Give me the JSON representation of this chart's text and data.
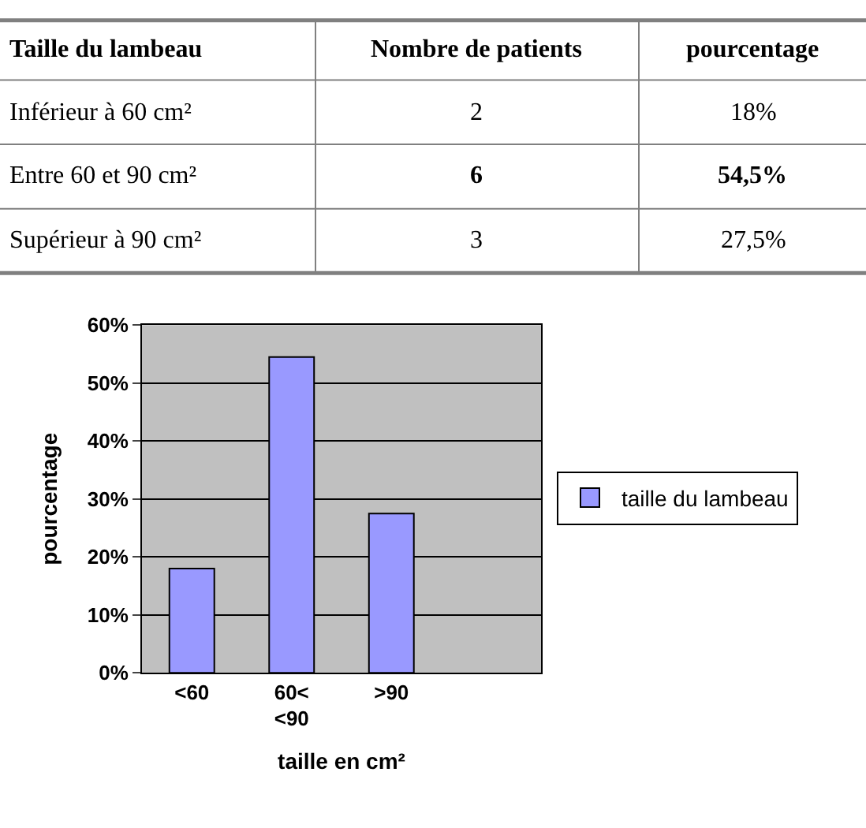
{
  "chart_data": [
    {
      "type": "other",
      "annotations": [
        "Taille du lambeau",
        "Nombre de patients",
        "pourcentage",
        "Inférieur à 60 cm²",
        "2",
        "18%",
        "Entre 60 et 90 cm²",
        "6",
        "54,5%",
        "Supérieur à 90 cm²",
        "3",
        "27,5%"
      ]
    },
    {
      "type": "bar",
      "categories": [
        "<60",
        "60< <90",
        ">90",
        null
      ],
      "series": [
        {
          "name": "taille du lambeau",
          "color": "#9999ff",
          "values": [
            18,
            54.5,
            27.5,
            null
          ]
        }
      ],
      "xlabel": "taille en cm²",
      "ylabel": "pourcentage",
      "ylim": [
        0,
        60
      ],
      "yticks": [
        {
          "value": 0,
          "label": "0%"
        },
        {
          "value": 10,
          "label": "10%"
        },
        {
          "value": 20,
          "label": "20%"
        },
        {
          "value": 30,
          "label": "30%"
        },
        {
          "value": 40,
          "label": "40%"
        },
        {
          "value": 50,
          "label": "50%"
        },
        {
          "value": 60,
          "label": "60%"
        }
      ],
      "grid": "y",
      "legend": "right"
    }
  ]
}
